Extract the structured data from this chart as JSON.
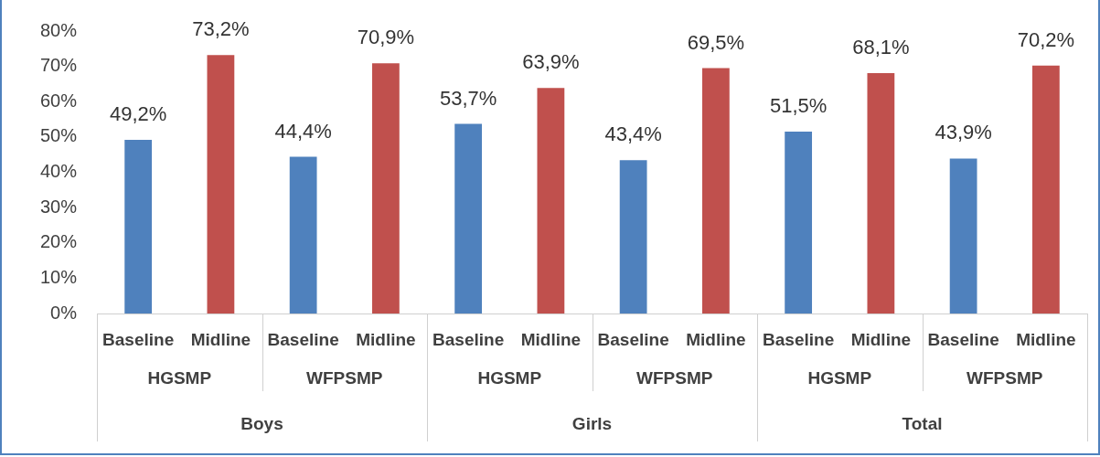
{
  "chart_data": {
    "type": "bar",
    "categories": [
      "Baseline",
      "Midline",
      "Baseline",
      "Midline",
      "Baseline",
      "Midline",
      "Baseline",
      "Midline",
      "Baseline",
      "Midline",
      "Baseline",
      "Midline"
    ],
    "values": [
      49.2,
      73.2,
      44.4,
      70.9,
      53.7,
      63.9,
      43.4,
      69.5,
      51.5,
      68.1,
      43.9,
      70.2
    ],
    "colors": [
      "#4f81bd",
      "#c0504d",
      "#4f81bd",
      "#c0504d",
      "#4f81bd",
      "#c0504d",
      "#4f81bd",
      "#c0504d",
      "#4f81bd",
      "#c0504d",
      "#4f81bd",
      "#c0504d"
    ],
    "value_labels": [
      "49,2%",
      "73,2%",
      "44,4%",
      "70,9%",
      "53,7%",
      "63,9%",
      "43,4%",
      "69,5%",
      "51,5%",
      "68,1%",
      "43,9%",
      "70,2%"
    ],
    "annotations": [
      "HGSMP",
      "WFPSMP",
      "HGSMP",
      "WFPSMP",
      "HGSMP",
      "WFPSMP",
      "Boys",
      "Girls",
      "Total"
    ],
    "ylim": [
      0,
      80
    ],
    "yticks": [
      {
        "value": 0,
        "label": "0%"
      },
      {
        "value": 10,
        "label": "10%"
      },
      {
        "value": 20,
        "label": "20%"
      },
      {
        "value": 30,
        "label": "30%"
      },
      {
        "value": 40,
        "label": "40%"
      },
      {
        "value": 50,
        "label": "50%"
      },
      {
        "value": 60,
        "label": "60%"
      },
      {
        "value": 70,
        "label": "70%"
      },
      {
        "value": 80,
        "label": "80%"
      }
    ],
    "grid": false,
    "legend": false
  }
}
